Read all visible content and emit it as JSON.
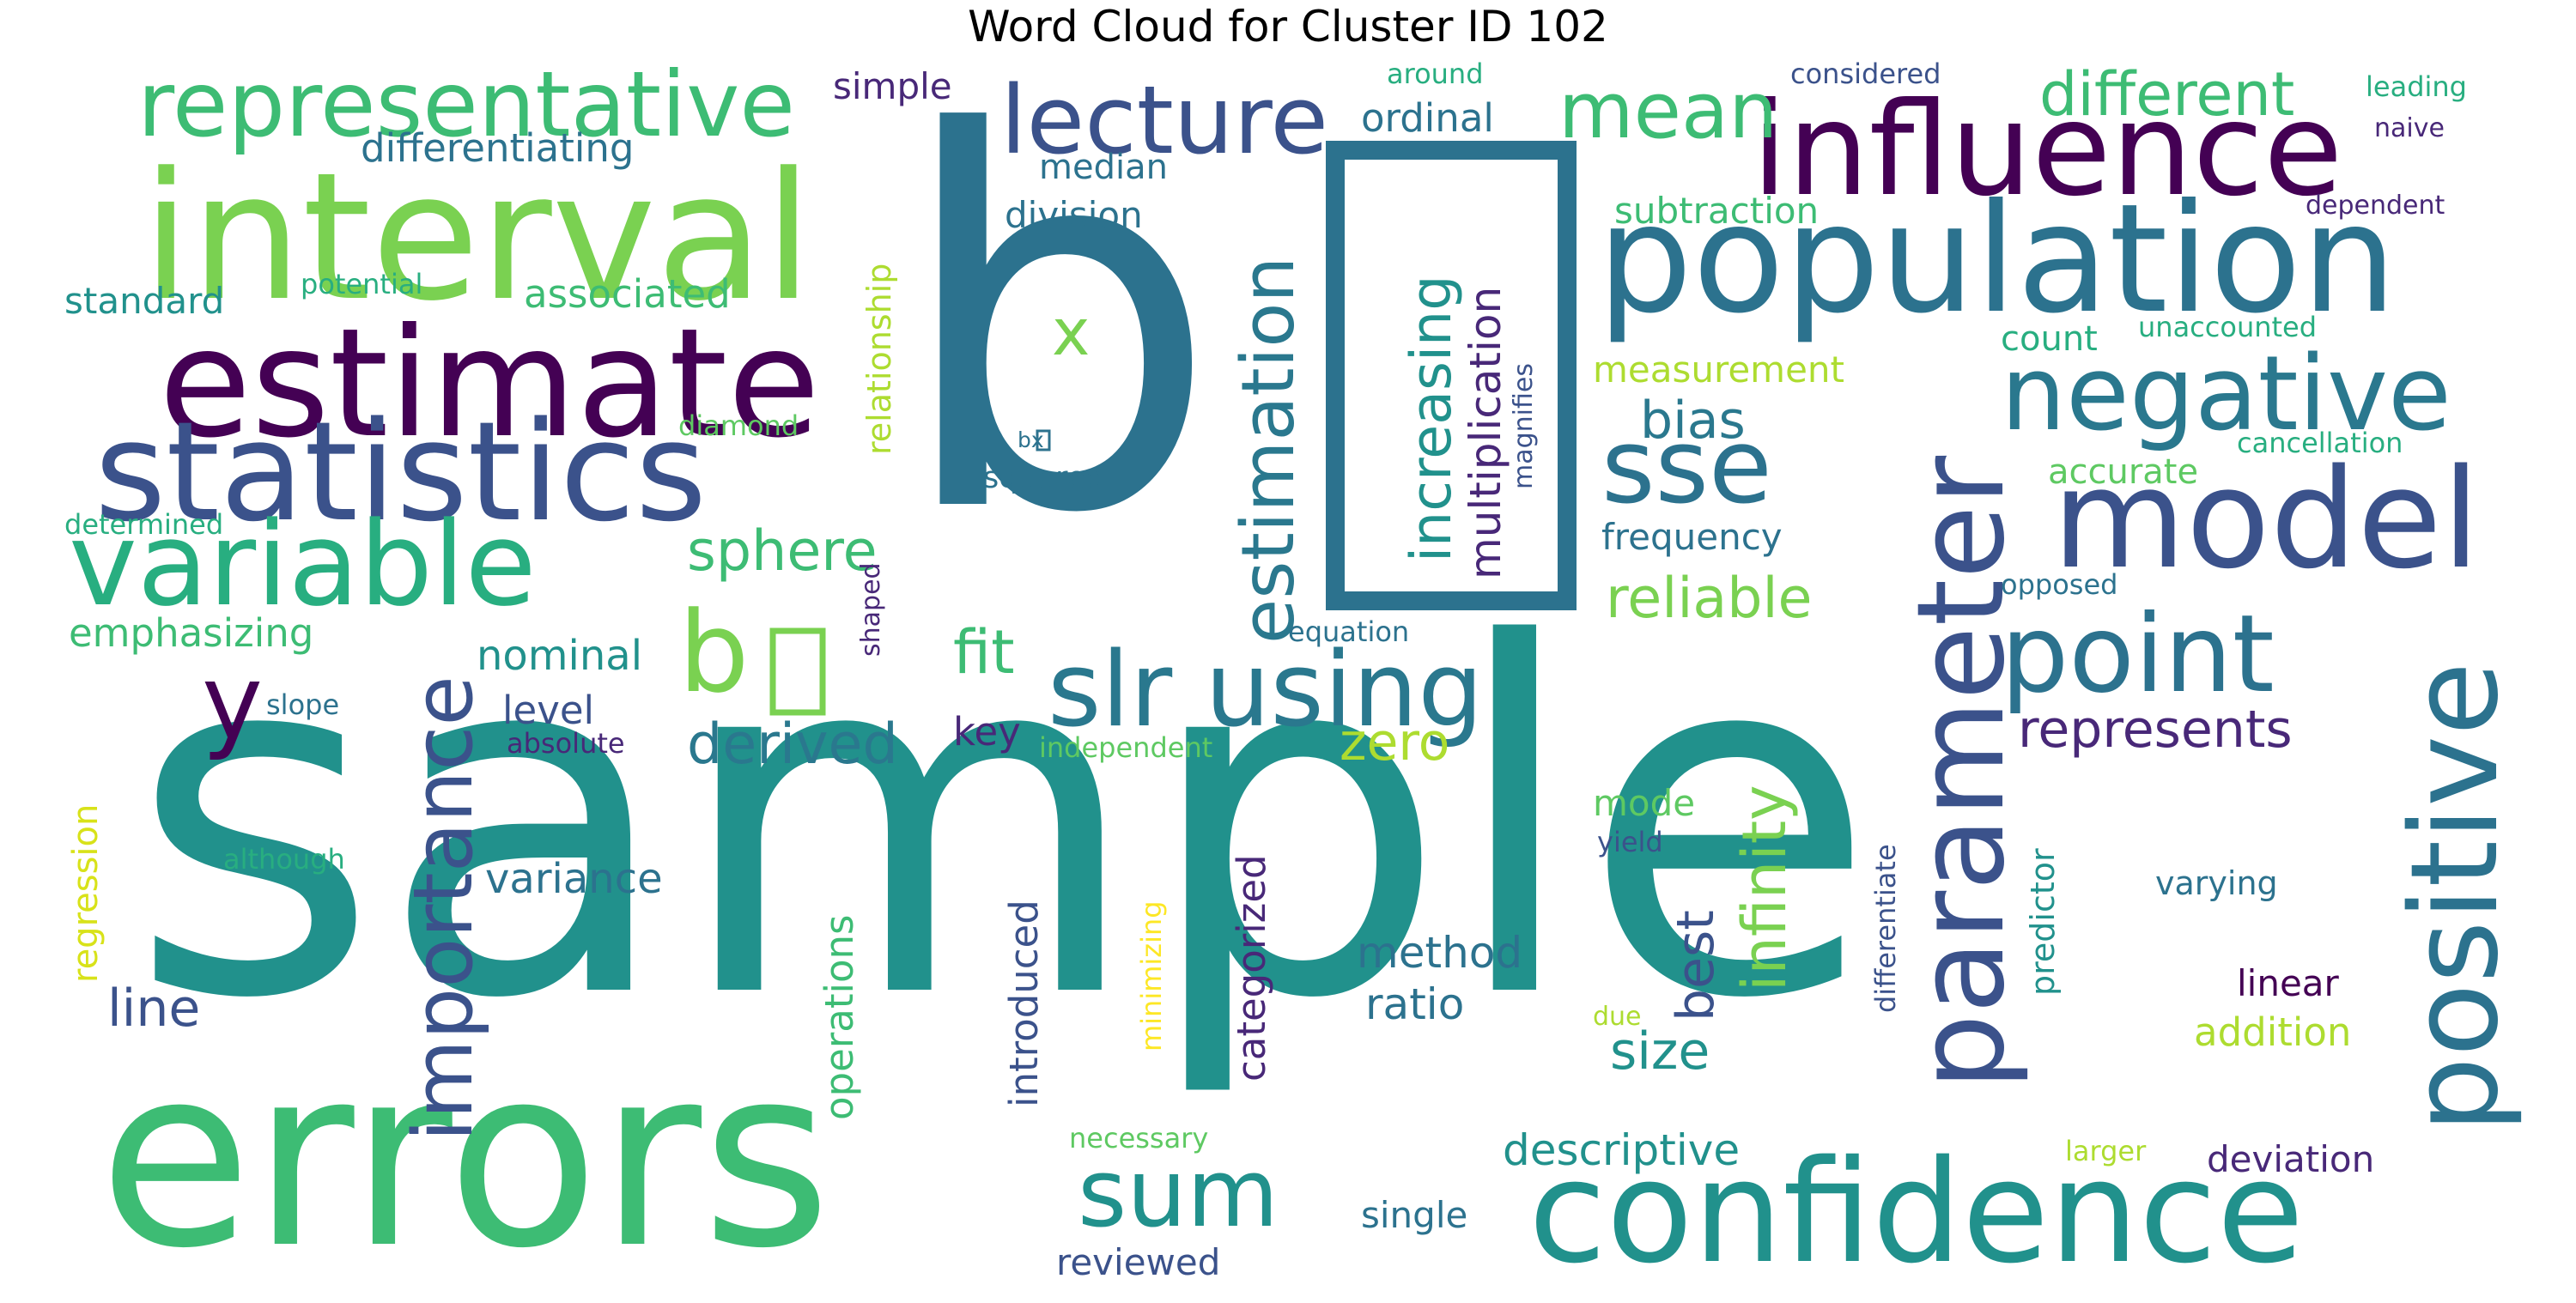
{
  "title": "Word Cloud for Cluster ID 102",
  "palette": {
    "dark_purple": "#440154",
    "indigo": "#3b528b",
    "steel_blue": "#2c728e",
    "teal": "#21918c",
    "sea_green": "#28ae80",
    "green": "#5ec962",
    "light_green": "#addc30",
    "yellow": "#fde725",
    "background": "#ffffff"
  },
  "words": [
    {
      "id": "sample",
      "text": "sample",
      "color": "#21918c"
    },
    {
      "id": "b-box-big",
      "text": "b",
      "color": "#2c728e"
    },
    {
      "id": "errors",
      "text": "errors",
      "color": "#3dbc74"
    },
    {
      "id": "interval",
      "text": "interval",
      "color": "#7ad151"
    },
    {
      "id": "population",
      "text": "population",
      "color": "#2c728e"
    },
    {
      "id": "estimate",
      "text": "estimate",
      "color": "#440154"
    },
    {
      "id": "confidence",
      "text": "confidence",
      "color": "#21918c"
    },
    {
      "id": "statistics",
      "text": "statistics",
      "color": "#3b528b"
    },
    {
      "id": "influence",
      "text": "influence",
      "color": "#440154"
    },
    {
      "id": "model",
      "text": "model",
      "color": "#3b528b"
    },
    {
      "id": "parameter",
      "text": "parameter",
      "color": "#3b528b"
    },
    {
      "id": "positive",
      "text": "positive",
      "color": "#2c728e"
    },
    {
      "id": "variable",
      "text": "variable",
      "color": "#28ae80"
    },
    {
      "id": "representative",
      "text": "representative",
      "color": "#3dbc74"
    },
    {
      "id": "negative",
      "text": "negative",
      "color": "#2a788e"
    },
    {
      "id": "lecture",
      "text": "lecture",
      "color": "#3b528b"
    },
    {
      "id": "slr-using",
      "text": "slr using",
      "color": "#2a788e"
    },
    {
      "id": "point",
      "text": "point",
      "color": "#2c728e"
    },
    {
      "id": "sse",
      "text": "sse",
      "color": "#2c728e"
    },
    {
      "id": "sum",
      "text": "sum",
      "color": "#21918c"
    },
    {
      "id": "b-box-small",
      "text": "b",
      "color": "#7ad151"
    },
    {
      "id": "importance",
      "text": "importance",
      "color": "#3b528b"
    },
    {
      "id": "estimation",
      "text": "estimation",
      "color": "#2a788e"
    },
    {
      "id": "mean",
      "text": "mean",
      "color": "#3dbc74"
    },
    {
      "id": "different",
      "text": "different",
      "color": "#3dbc74"
    },
    {
      "id": "y",
      "text": "y",
      "color": "#440154"
    },
    {
      "id": "increasing",
      "text": "increasing",
      "color": "#21918c"
    },
    {
      "id": "multiplication",
      "text": "multiplication",
      "color": "#482878"
    },
    {
      "id": "sphere",
      "text": "sphere",
      "color": "#3dbc74"
    },
    {
      "id": "x",
      "text": "x",
      "color": "#7ad151"
    },
    {
      "id": "fit",
      "text": "fit",
      "color": "#3dbc74"
    },
    {
      "id": "derived",
      "text": "derived",
      "color": "#2a788e"
    },
    {
      "id": "represents",
      "text": "represents",
      "color": "#482878"
    },
    {
      "id": "reliable",
      "text": "reliable",
      "color": "#7ad151"
    },
    {
      "id": "infinity",
      "text": "infinity",
      "color": "#7ad151"
    },
    {
      "id": "zero",
      "text": "zero",
      "color": "#addc30"
    },
    {
      "id": "bias",
      "text": "bias",
      "color": "#2a788e"
    },
    {
      "id": "line",
      "text": "line",
      "color": "#3b528b"
    },
    {
      "id": "size",
      "text": "size",
      "color": "#21918c"
    },
    {
      "id": "best",
      "text": "best",
      "color": "#3b528b"
    },
    {
      "id": "method",
      "text": "method",
      "color": "#2c728e"
    },
    {
      "id": "ratio",
      "text": "ratio",
      "color": "#2c728e"
    },
    {
      "id": "descriptive",
      "text": "descriptive",
      "color": "#21918c"
    },
    {
      "id": "categorized",
      "text": "categorized",
      "color": "#482878"
    },
    {
      "id": "introduced",
      "text": "introduced",
      "color": "#3b528b"
    },
    {
      "id": "operations",
      "text": "operations",
      "color": "#3dbc74"
    },
    {
      "id": "variance",
      "text": "variance",
      "color": "#2c728e"
    },
    {
      "id": "nominal",
      "text": "nominal",
      "color": "#21918c"
    },
    {
      "id": "emphasizing",
      "text": "emphasizing",
      "color": "#3dbc74"
    },
    {
      "id": "standard",
      "text": "standard",
      "color": "#21918c"
    },
    {
      "id": "associated",
      "text": "associated",
      "color": "#3dbc74"
    },
    {
      "id": "differentiating",
      "text": "differentiating",
      "color": "#2c728e"
    },
    {
      "id": "relationship",
      "text": "relationship",
      "color": "#addc30"
    },
    {
      "id": "simple",
      "text": "simple",
      "color": "#482878"
    },
    {
      "id": "ordinal",
      "text": "ordinal",
      "color": "#2c728e"
    },
    {
      "id": "median",
      "text": "median",
      "color": "#2c728e"
    },
    {
      "id": "division",
      "text": "division",
      "color": "#2c728e"
    },
    {
      "id": "subtraction",
      "text": "subtraction",
      "color": "#3dbc74"
    },
    {
      "id": "measurement",
      "text": "measurement",
      "color": "#addc30"
    },
    {
      "id": "count",
      "text": "count",
      "color": "#28ae80"
    },
    {
      "id": "accurate",
      "text": "accurate",
      "color": "#5ec962"
    },
    {
      "id": "frequency",
      "text": "frequency",
      "color": "#2c728e"
    },
    {
      "id": "mode",
      "text": "mode",
      "color": "#5ec962"
    },
    {
      "id": "level",
      "text": "level",
      "color": "#3b528b"
    },
    {
      "id": "key",
      "text": "key",
      "color": "#482878"
    },
    {
      "id": "linear",
      "text": "linear",
      "color": "#440154"
    },
    {
      "id": "addition",
      "text": "addition",
      "color": "#addc30"
    },
    {
      "id": "deviation",
      "text": "deviation",
      "color": "#482878"
    },
    {
      "id": "single",
      "text": "single",
      "color": "#2c728e"
    },
    {
      "id": "reviewed",
      "text": "reviewed",
      "color": "#3b528b"
    },
    {
      "id": "regression",
      "text": "regression",
      "color": "#d8e219"
    },
    {
      "id": "predictor",
      "text": "predictor",
      "color": "#21918c"
    },
    {
      "id": "magnifies",
      "text": "magnifies",
      "color": "#3b528b"
    },
    {
      "id": "around",
      "text": "around",
      "color": "#28ae80"
    },
    {
      "id": "considered",
      "text": "considered",
      "color": "#3b528b"
    },
    {
      "id": "leading",
      "text": "leading",
      "color": "#28ae80"
    },
    {
      "id": "naive",
      "text": "naive",
      "color": "#482878"
    },
    {
      "id": "dependent",
      "text": "dependent",
      "color": "#482878"
    },
    {
      "id": "unaccounted",
      "text": "unaccounted",
      "color": "#28ae80"
    },
    {
      "id": "cancellation",
      "text": "cancellation",
      "color": "#28ae80"
    },
    {
      "id": "opposed",
      "text": "opposed",
      "color": "#2c728e"
    },
    {
      "id": "potential",
      "text": "potential",
      "color": "#28ae80"
    },
    {
      "id": "diamond",
      "text": "diamond",
      "color": "#5ec962"
    },
    {
      "id": "determined",
      "text": "determined",
      "color": "#28ae80"
    },
    {
      "id": "squared",
      "text": "squared",
      "color": "#2c728e"
    },
    {
      "id": "b-box-x",
      "text": "bx",
      "color": "#2c728e"
    },
    {
      "id": "equation",
      "text": "equation",
      "color": "#2c728e"
    },
    {
      "id": "shaped",
      "text": "shaped",
      "color": "#482878"
    },
    {
      "id": "slope",
      "text": "slope",
      "color": "#2c728e"
    },
    {
      "id": "absolute",
      "text": "absolute",
      "color": "#482878"
    },
    {
      "id": "independent",
      "text": "independent",
      "color": "#5ec962"
    },
    {
      "id": "although",
      "text": "although",
      "color": "#28ae80"
    },
    {
      "id": "minimizing",
      "text": "minimizing",
      "color": "#fde725"
    },
    {
      "id": "yield",
      "text": "yield",
      "color": "#3b528b"
    },
    {
      "id": "differentiate",
      "text": "differentiate",
      "color": "#3b528b"
    },
    {
      "id": "varying",
      "text": "varying",
      "color": "#2c728e"
    },
    {
      "id": "due",
      "text": "due",
      "color": "#addc30"
    },
    {
      "id": "necessary",
      "text": "necessary",
      "color": "#5ec962"
    },
    {
      "id": "larger",
      "text": "larger",
      "color": "#addc30"
    }
  ]
}
